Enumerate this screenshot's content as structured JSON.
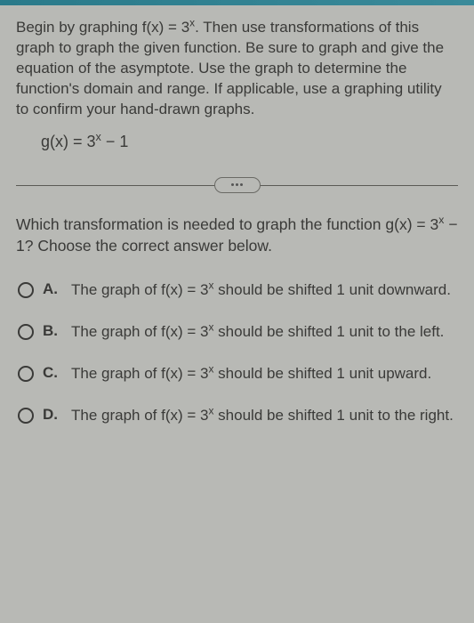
{
  "colors": {
    "page_bg": "#b8b9b5",
    "text": "#3a3a38",
    "topbar_start": "#2a7a8a",
    "topbar_end": "#3a8a9a",
    "divider": "#5a5a55",
    "radio_border": "#3a3a38"
  },
  "typography": {
    "body_fontsize": 17,
    "question_fontsize": 17.5,
    "func_fontsize": 18,
    "option_letter_weight": 700
  },
  "prompt": {
    "text_html": "Begin by graphing f(x) = 3<sup>x</sup>. Then use transformations of this graph to graph the given function. Be sure to graph and give the equation of the asymptote. Use the graph to determine the function's domain and range. If applicable, use a graphing utility to confirm your hand-drawn graphs."
  },
  "function_def": {
    "html": "g(x) = 3<sup>x</sup> − 1"
  },
  "question": {
    "html": "Which transformation is needed to graph the function g(x) = 3<sup>x</sup> − 1? Choose the correct answer below."
  },
  "options": [
    {
      "letter": "A.",
      "html": "The graph of f(x) = 3<sup>x</sup> should be shifted 1 unit downward."
    },
    {
      "letter": "B.",
      "html": "The graph of f(x) = 3<sup>x</sup> should be shifted 1 unit to the left."
    },
    {
      "letter": "C.",
      "html": "The graph of f(x) = 3<sup>x</sup> should be shifted 1 unit upward."
    },
    {
      "letter": "D.",
      "html": "The graph of f(x) = 3<sup>x</sup> should be shifted 1 unit to the right."
    }
  ]
}
